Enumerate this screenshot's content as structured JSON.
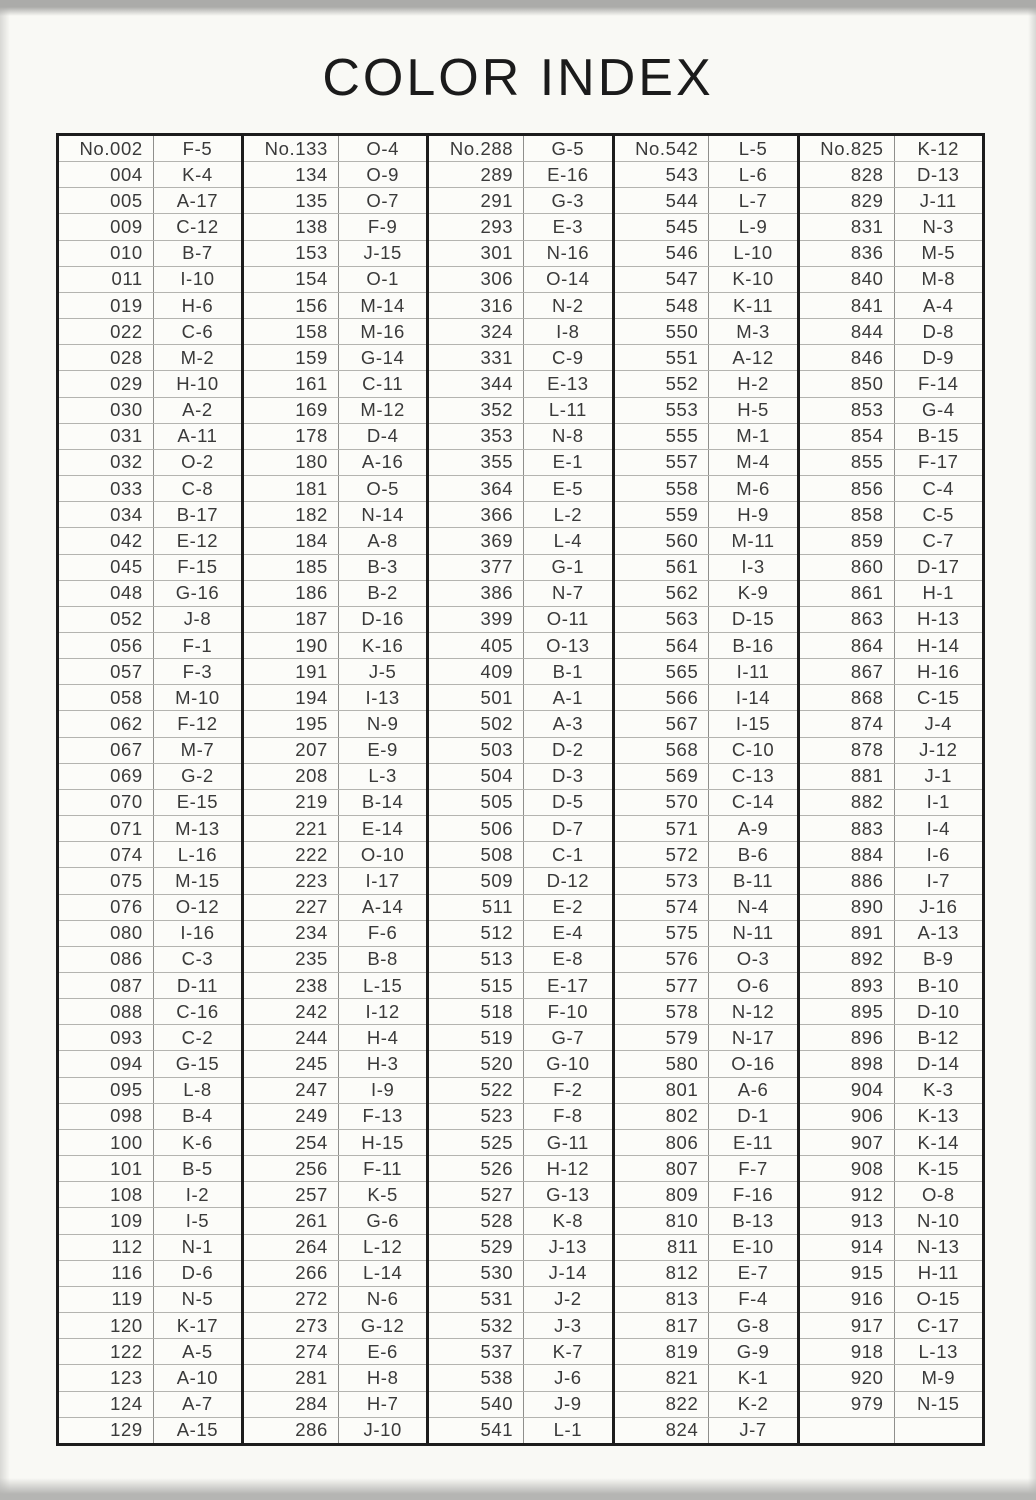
{
  "page": {
    "title": "COLOR INDEX"
  },
  "table": {
    "columns": [
      {
        "rows": [
          [
            "No.002",
            "F-5"
          ],
          [
            "004",
            "K-4"
          ],
          [
            "005",
            "A-17"
          ],
          [
            "009",
            "C-12"
          ],
          [
            "010",
            "B-7"
          ],
          [
            "011",
            "I-10"
          ],
          [
            "019",
            "H-6"
          ],
          [
            "022",
            "C-6"
          ],
          [
            "028",
            "M-2"
          ],
          [
            "029",
            "H-10"
          ],
          [
            "030",
            "A-2"
          ],
          [
            "031",
            "A-11"
          ],
          [
            "032",
            "O-2"
          ],
          [
            "033",
            "C-8"
          ],
          [
            "034",
            "B-17"
          ],
          [
            "042",
            "E-12"
          ],
          [
            "045",
            "F-15"
          ],
          [
            "048",
            "G-16"
          ],
          [
            "052",
            "J-8"
          ],
          [
            "056",
            "F-1"
          ],
          [
            "057",
            "F-3"
          ],
          [
            "058",
            "M-10"
          ],
          [
            "062",
            "F-12"
          ],
          [
            "067",
            "M-7"
          ],
          [
            "069",
            "G-2"
          ],
          [
            "070",
            "E-15"
          ],
          [
            "071",
            "M-13"
          ],
          [
            "074",
            "L-16"
          ],
          [
            "075",
            "M-15"
          ],
          [
            "076",
            "O-12"
          ],
          [
            "080",
            "I-16"
          ],
          [
            "086",
            "C-3"
          ],
          [
            "087",
            "D-11"
          ],
          [
            "088",
            "C-16"
          ],
          [
            "093",
            "C-2"
          ],
          [
            "094",
            "G-15"
          ],
          [
            "095",
            "L-8"
          ],
          [
            "098",
            "B-4"
          ],
          [
            "100",
            "K-6"
          ],
          [
            "101",
            "B-5"
          ],
          [
            "108",
            "I-2"
          ],
          [
            "109",
            "I-5"
          ],
          [
            "112",
            "N-1"
          ],
          [
            "116",
            "D-6"
          ],
          [
            "119",
            "N-5"
          ],
          [
            "120",
            "K-17"
          ],
          [
            "122",
            "A-5"
          ],
          [
            "123",
            "A-10"
          ],
          [
            "124",
            "A-7"
          ],
          [
            "129",
            "A-15"
          ]
        ]
      },
      {
        "rows": [
          [
            "No.133",
            "O-4"
          ],
          [
            "134",
            "O-9"
          ],
          [
            "135",
            "O-7"
          ],
          [
            "138",
            "F-9"
          ],
          [
            "153",
            "J-15"
          ],
          [
            "154",
            "O-1"
          ],
          [
            "156",
            "M-14"
          ],
          [
            "158",
            "M-16"
          ],
          [
            "159",
            "G-14"
          ],
          [
            "161",
            "C-11"
          ],
          [
            "169",
            "M-12"
          ],
          [
            "178",
            "D-4"
          ],
          [
            "180",
            "A-16"
          ],
          [
            "181",
            "O-5"
          ],
          [
            "182",
            "N-14"
          ],
          [
            "184",
            "A-8"
          ],
          [
            "185",
            "B-3"
          ],
          [
            "186",
            "B-2"
          ],
          [
            "187",
            "D-16"
          ],
          [
            "190",
            "K-16"
          ],
          [
            "191",
            "J-5"
          ],
          [
            "194",
            "I-13"
          ],
          [
            "195",
            "N-9"
          ],
          [
            "207",
            "E-9"
          ],
          [
            "208",
            "L-3"
          ],
          [
            "219",
            "B-14"
          ],
          [
            "221",
            "E-14"
          ],
          [
            "222",
            "O-10"
          ],
          [
            "223",
            "I-17"
          ],
          [
            "227",
            "A-14"
          ],
          [
            "234",
            "F-6"
          ],
          [
            "235",
            "B-8"
          ],
          [
            "238",
            "L-15"
          ],
          [
            "242",
            "I-12"
          ],
          [
            "244",
            "H-4"
          ],
          [
            "245",
            "H-3"
          ],
          [
            "247",
            "I-9"
          ],
          [
            "249",
            "F-13"
          ],
          [
            "254",
            "H-15"
          ],
          [
            "256",
            "F-11"
          ],
          [
            "257",
            "K-5"
          ],
          [
            "261",
            "G-6"
          ],
          [
            "264",
            "L-12"
          ],
          [
            "266",
            "L-14"
          ],
          [
            "272",
            "N-6"
          ],
          [
            "273",
            "G-12"
          ],
          [
            "274",
            "E-6"
          ],
          [
            "281",
            "H-8"
          ],
          [
            "284",
            "H-7"
          ],
          [
            "286",
            "J-10"
          ]
        ]
      },
      {
        "rows": [
          [
            "No.288",
            "G-5"
          ],
          [
            "289",
            "E-16"
          ],
          [
            "291",
            "G-3"
          ],
          [
            "293",
            "E-3"
          ],
          [
            "301",
            "N-16"
          ],
          [
            "306",
            "O-14"
          ],
          [
            "316",
            "N-2"
          ],
          [
            "324",
            "I-8"
          ],
          [
            "331",
            "C-9"
          ],
          [
            "344",
            "E-13"
          ],
          [
            "352",
            "L-11"
          ],
          [
            "353",
            "N-8"
          ],
          [
            "355",
            "E-1"
          ],
          [
            "364",
            "E-5"
          ],
          [
            "366",
            "L-2"
          ],
          [
            "369",
            "L-4"
          ],
          [
            "377",
            "G-1"
          ],
          [
            "386",
            "N-7"
          ],
          [
            "399",
            "O-11"
          ],
          [
            "405",
            "O-13"
          ],
          [
            "409",
            "B-1"
          ],
          [
            "501",
            "A-1"
          ],
          [
            "502",
            "A-3"
          ],
          [
            "503",
            "D-2"
          ],
          [
            "504",
            "D-3"
          ],
          [
            "505",
            "D-5"
          ],
          [
            "506",
            "D-7"
          ],
          [
            "508",
            "C-1"
          ],
          [
            "509",
            "D-12"
          ],
          [
            "511",
            "E-2"
          ],
          [
            "512",
            "E-4"
          ],
          [
            "513",
            "E-8"
          ],
          [
            "515",
            "E-17"
          ],
          [
            "518",
            "F-10"
          ],
          [
            "519",
            "G-7"
          ],
          [
            "520",
            "G-10"
          ],
          [
            "522",
            "F-2"
          ],
          [
            "523",
            "F-8"
          ],
          [
            "525",
            "G-11"
          ],
          [
            "526",
            "H-12"
          ],
          [
            "527",
            "G-13"
          ],
          [
            "528",
            "K-8"
          ],
          [
            "529",
            "J-13"
          ],
          [
            "530",
            "J-14"
          ],
          [
            "531",
            "J-2"
          ],
          [
            "532",
            "J-3"
          ],
          [
            "537",
            "K-7"
          ],
          [
            "538",
            "J-6"
          ],
          [
            "540",
            "J-9"
          ],
          [
            "541",
            "L-1"
          ]
        ]
      },
      {
        "rows": [
          [
            "No.542",
            "L-5"
          ],
          [
            "543",
            "L-6"
          ],
          [
            "544",
            "L-7"
          ],
          [
            "545",
            "L-9"
          ],
          [
            "546",
            "L-10"
          ],
          [
            "547",
            "K-10"
          ],
          [
            "548",
            "K-11"
          ],
          [
            "550",
            "M-3"
          ],
          [
            "551",
            "A-12"
          ],
          [
            "552",
            "H-2"
          ],
          [
            "553",
            "H-5"
          ],
          [
            "555",
            "M-1"
          ],
          [
            "557",
            "M-4"
          ],
          [
            "558",
            "M-6"
          ],
          [
            "559",
            "H-9"
          ],
          [
            "560",
            "M-11"
          ],
          [
            "561",
            "I-3"
          ],
          [
            "562",
            "K-9"
          ],
          [
            "563",
            "D-15"
          ],
          [
            "564",
            "B-16"
          ],
          [
            "565",
            "I-11"
          ],
          [
            "566",
            "I-14"
          ],
          [
            "567",
            "I-15"
          ],
          [
            "568",
            "C-10"
          ],
          [
            "569",
            "C-13"
          ],
          [
            "570",
            "C-14"
          ],
          [
            "571",
            "A-9"
          ],
          [
            "572",
            "B-6"
          ],
          [
            "573",
            "B-11"
          ],
          [
            "574",
            "N-4"
          ],
          [
            "575",
            "N-11"
          ],
          [
            "576",
            "O-3"
          ],
          [
            "577",
            "O-6"
          ],
          [
            "578",
            "N-12"
          ],
          [
            "579",
            "N-17"
          ],
          [
            "580",
            "O-16"
          ],
          [
            "801",
            "A-6"
          ],
          [
            "802",
            "D-1"
          ],
          [
            "806",
            "E-11"
          ],
          [
            "807",
            "F-7"
          ],
          [
            "809",
            "F-16"
          ],
          [
            "810",
            "B-13"
          ],
          [
            "811",
            "E-10"
          ],
          [
            "812",
            "E-7"
          ],
          [
            "813",
            "F-4"
          ],
          [
            "817",
            "G-8"
          ],
          [
            "819",
            "G-9"
          ],
          [
            "821",
            "K-1"
          ],
          [
            "822",
            "K-2"
          ],
          [
            "824",
            "J-7"
          ]
        ]
      },
      {
        "rows": [
          [
            "No.825",
            "K-12"
          ],
          [
            "828",
            "D-13"
          ],
          [
            "829",
            "J-11"
          ],
          [
            "831",
            "N-3"
          ],
          [
            "836",
            "M-5"
          ],
          [
            "840",
            "M-8"
          ],
          [
            "841",
            "A-4"
          ],
          [
            "844",
            "D-8"
          ],
          [
            "846",
            "D-9"
          ],
          [
            "850",
            "F-14"
          ],
          [
            "853",
            "G-4"
          ],
          [
            "854",
            "B-15"
          ],
          [
            "855",
            "F-17"
          ],
          [
            "856",
            "C-4"
          ],
          [
            "858",
            "C-5"
          ],
          [
            "859",
            "C-7"
          ],
          [
            "860",
            "D-17"
          ],
          [
            "861",
            "H-1"
          ],
          [
            "863",
            "H-13"
          ],
          [
            "864",
            "H-14"
          ],
          [
            "867",
            "H-16"
          ],
          [
            "868",
            "C-15"
          ],
          [
            "874",
            "J-4"
          ],
          [
            "878",
            "J-12"
          ],
          [
            "881",
            "J-1"
          ],
          [
            "882",
            "I-1"
          ],
          [
            "883",
            "I-4"
          ],
          [
            "884",
            "I-6"
          ],
          [
            "886",
            "I-7"
          ],
          [
            "890",
            "J-16"
          ],
          [
            "891",
            "A-13"
          ],
          [
            "892",
            "B-9"
          ],
          [
            "893",
            "B-10"
          ],
          [
            "895",
            "D-10"
          ],
          [
            "896",
            "B-12"
          ],
          [
            "898",
            "D-14"
          ],
          [
            "904",
            "K-3"
          ],
          [
            "906",
            "K-13"
          ],
          [
            "907",
            "K-14"
          ],
          [
            "908",
            "K-15"
          ],
          [
            "912",
            "O-8"
          ],
          [
            "913",
            "N-10"
          ],
          [
            "914",
            "N-13"
          ],
          [
            "915",
            "H-11"
          ],
          [
            "916",
            "O-15"
          ],
          [
            "917",
            "C-17"
          ],
          [
            "918",
            "L-13"
          ],
          [
            "920",
            "M-9"
          ],
          [
            "979",
            "N-15"
          ],
          [
            "",
            ""
          ]
        ]
      }
    ]
  }
}
